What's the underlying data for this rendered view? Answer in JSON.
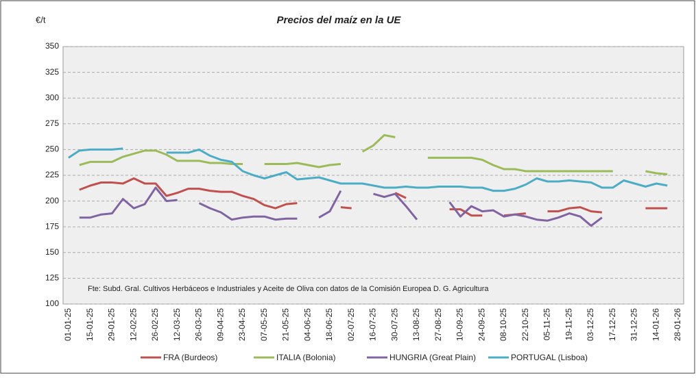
{
  "chart_data": {
    "type": "line",
    "title": "Precios del maíz en la UE",
    "y_label": "€/t",
    "annotation": "Fte: Subd. Gral. Cultivos Herbáceos e Industriales y Aceite de Oliva con datos de la Comisión Europea D. G. Agricultura",
    "categories": [
      "01-01-25",
      null,
      "15-01-25",
      null,
      "29-01-25",
      null,
      "12-02-25",
      null,
      "26-02-25",
      null,
      "12-03-25",
      null,
      "26-03-25",
      null,
      "09-04-25",
      null,
      "23-04-25",
      null,
      "07-05-25",
      null,
      "21-05-25",
      null,
      "04-06-25",
      null,
      "18-06-25",
      null,
      "02-07-25",
      null,
      "16-07-25",
      null,
      "30-07-25",
      null,
      "13-08-25",
      null,
      "27-08-25",
      null,
      "10-09-25",
      null,
      "24-09-25",
      null,
      "08-10-25",
      null,
      "22-10-25",
      null,
      "05-11-25",
      null,
      "19-11-25",
      null,
      "03-12-25",
      null,
      "17-12-25",
      null,
      "31-12-25",
      null,
      "14-01-26",
      null,
      "28-01-26"
    ],
    "series": [
      {
        "name": "FRA (Burdeos)",
        "color": "#c0504d",
        "values": [
          null,
          211,
          215,
          218,
          218,
          217,
          222,
          217,
          217,
          205,
          208,
          212,
          212,
          210,
          209,
          209,
          205,
          202,
          196,
          193,
          197,
          198,
          null,
          null,
          null,
          194,
          193,
          null,
          null,
          null,
          208,
          203,
          null,
          null,
          null,
          192,
          192,
          186,
          186,
          null,
          186,
          187,
          188,
          null,
          190,
          190,
          193,
          194,
          190,
          189,
          null,
          null,
          null,
          193,
          193,
          193,
          null
        ]
      },
      {
        "name": "ITALIA (Bolonia)",
        "color": "#9bbb59",
        "values": [
          null,
          235,
          238,
          238,
          238,
          243,
          246,
          249,
          249,
          245,
          239,
          239,
          239,
          237,
          237,
          236,
          236,
          null,
          236,
          236,
          236,
          237,
          235,
          233,
          235,
          236,
          null,
          248,
          254,
          264,
          262,
          null,
          null,
          242,
          242,
          242,
          242,
          242,
          240,
          235,
          231,
          231,
          229,
          229,
          229,
          229,
          229,
          229,
          229,
          229,
          229,
          null,
          null,
          229,
          227,
          226,
          null
        ]
      },
      {
        "name": "HUNGRIA (Great Plain)",
        "color": "#8064a2",
        "values": [
          null,
          184,
          184,
          187,
          188,
          202,
          193,
          197,
          213,
          200,
          201,
          null,
          198,
          193,
          189,
          182,
          184,
          185,
          185,
          182,
          183,
          183,
          null,
          184,
          190,
          210,
          null,
          null,
          207,
          204,
          207,
          195,
          182,
          null,
          null,
          199,
          185,
          195,
          190,
          191,
          185,
          187,
          185,
          182,
          181,
          184,
          188,
          185,
          176,
          184,
          null,
          null,
          null,
          null,
          null,
          null,
          null
        ]
      },
      {
        "name": "PORTUGAL (Lisboa)",
        "color": "#4bacc6",
        "values": [
          242,
          249,
          250,
          250,
          250,
          251,
          null,
          null,
          null,
          247,
          247,
          247,
          250,
          244,
          240,
          238,
          229,
          225,
          222,
          225,
          228,
          221,
          222,
          223,
          220,
          217,
          217,
          217,
          215,
          213,
          213,
          214,
          213,
          213,
          214,
          214,
          214,
          213,
          213,
          210,
          210,
          212,
          216,
          222,
          219,
          219,
          220,
          219,
          218,
          213,
          213,
          220,
          217,
          214,
          217,
          215,
          null
        ]
      }
    ],
    "ylim": [
      100,
      350
    ],
    "yticks": [
      100,
      125,
      150,
      175,
      200,
      225,
      250,
      275,
      300,
      325,
      350
    ],
    "grid": true
  }
}
